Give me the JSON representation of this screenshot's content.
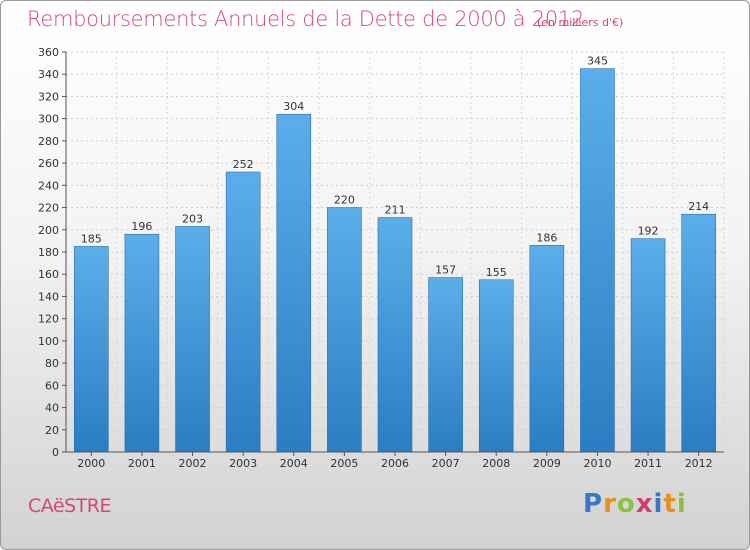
{
  "title": "Remboursements Annuels de la Dette de 2000 à 2012",
  "unit": "(en milliers d'€)",
  "commune": "CAëSTRE",
  "logo": {
    "text": "Proxiti",
    "letter_colors": [
      "#3a78c3",
      "#e8901c",
      "#8ac13d",
      "#d43c6c",
      "#3a78c3",
      "#e8901c",
      "#8ac13d"
    ]
  },
  "colors": {
    "title": "#d24a74",
    "bar_top": "#5caeea",
    "bar_bottom": "#2a7dc2",
    "grid": "#cfcfcf"
  },
  "chart_data": {
    "type": "bar",
    "title": "Remboursements Annuels de la Dette de 2000 à 2012",
    "categories": [
      "2000",
      "2001",
      "2002",
      "2003",
      "2004",
      "2005",
      "2006",
      "2007",
      "2008",
      "2009",
      "2010",
      "2011",
      "2012"
    ],
    "values": [
      185,
      196,
      203,
      252,
      304,
      220,
      211,
      157,
      155,
      186,
      345,
      192,
      214
    ],
    "ylim": [
      0,
      360
    ],
    "yticks": [
      0,
      20,
      40,
      60,
      80,
      100,
      120,
      140,
      160,
      180,
      200,
      220,
      240,
      260,
      280,
      300,
      320,
      340,
      360
    ],
    "grid": true,
    "data_labels": true
  }
}
